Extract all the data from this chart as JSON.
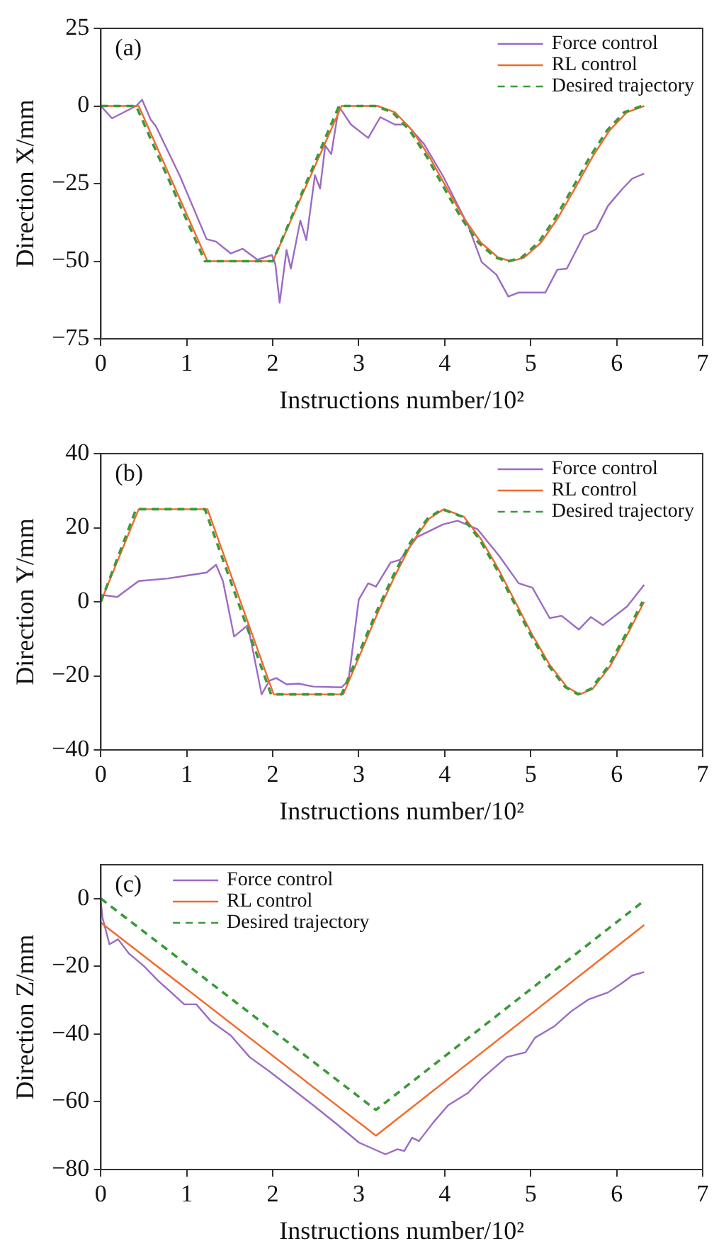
{
  "chart_data": [
    {
      "type": "line",
      "xlabel": "Instructions number/10²",
      "ylabel": "Direction X/mm",
      "annotations": [
        "(a)"
      ],
      "xlim": [
        0,
        7
      ],
      "xticks": [
        0,
        1,
        2,
        3,
        4,
        5,
        6,
        7
      ],
      "ylim": [
        -75,
        25
      ],
      "yticks": [
        -75,
        -50,
        -25,
        0,
        25
      ],
      "legend": "top right",
      "grid": false,
      "marker": "none",
      "series": [
        {
          "name": "Force control",
          "color": "#9b6bc4",
          "line_style": "solid",
          "x": [
            0,
            0.13,
            0.27,
            0.41,
            0.48,
            0.58,
            0.64,
            0.92,
            1.23,
            1.34,
            1.51,
            1.65,
            1.82,
            1.99,
            2.03,
            2.08,
            2.16,
            2.21,
            2.32,
            2.39,
            2.49,
            2.55,
            2.61,
            2.68,
            2.77,
            2.91,
            3.11,
            3.25,
            3.42,
            3.56,
            3.76,
            3.98,
            4.27,
            4.43,
            4.6,
            4.74,
            4.86,
            5.17,
            5.31,
            5.42,
            5.62,
            5.76,
            5.9,
            6.07,
            6.18,
            6.32
          ],
          "values": [
            0,
            -4,
            -2,
            0,
            2,
            -4.4,
            -6.5,
            -22.6,
            -42.9,
            -43.7,
            -47.5,
            -46,
            -49.5,
            -48,
            -51,
            -63.4,
            -46.4,
            -52.4,
            -36.9,
            -43.2,
            -22.3,
            -26.6,
            -12.8,
            -15.5,
            -0.2,
            -6,
            -10.3,
            -3.6,
            -6,
            -6,
            -12.3,
            -22.6,
            -38.4,
            -50.3,
            -54.3,
            -61.4,
            -60.1,
            -60.1,
            -52.7,
            -52.4,
            -41.6,
            -39.7,
            -32.1,
            -26.6,
            -23.4,
            -21.8
          ]
        },
        {
          "name": "RL control",
          "color": "#f26a2a",
          "line_style": "solid",
          "x": [
            0,
            0.44,
            1.24,
            2.0,
            2.8,
            3.22,
            3.42,
            3.62,
            3.82,
            4.02,
            4.22,
            4.42,
            4.62,
            4.77,
            4.92,
            5.12,
            5.32,
            5.52,
            5.72,
            5.92,
            6.12,
            6.32
          ],
          "values": [
            0,
            0,
            -50,
            -50,
            0,
            0,
            -2,
            -7.8,
            -16.3,
            -26.3,
            -36,
            -44,
            -48.8,
            -50,
            -48.9,
            -44,
            -35.9,
            -26.3,
            -16.3,
            -7.8,
            -2,
            0
          ]
        },
        {
          "name": "Desired trajectory",
          "color": "#3a9a3a",
          "line_style": "dashed",
          "x": [
            0,
            0.41,
            1.21,
            2.0,
            2.77,
            3.19,
            3.39,
            3.59,
            3.79,
            3.99,
            4.19,
            4.39,
            4.59,
            4.74,
            4.89,
            5.09,
            5.29,
            5.49,
            5.69,
            5.89,
            6.09,
            6.29
          ],
          "values": [
            0,
            0,
            -50,
            -50,
            0,
            0,
            -2,
            -7.8,
            -16.3,
            -26.3,
            -36,
            -44,
            -48.8,
            -50,
            -48.9,
            -44,
            -35.9,
            -26.3,
            -16.3,
            -7.8,
            -2,
            0
          ]
        }
      ]
    },
    {
      "type": "line",
      "xlabel": "Instructions number/10²",
      "ylabel": "Direction Y/mm",
      "annotations": [
        "(b)"
      ],
      "xlim": [
        0,
        7
      ],
      "xticks": [
        0,
        1,
        2,
        3,
        4,
        5,
        6,
        7
      ],
      "ylim": [
        -40,
        40
      ],
      "yticks": [
        -40,
        -20,
        0,
        20,
        40
      ],
      "legend": "top right",
      "grid": false,
      "marker": "none",
      "series": [
        {
          "name": "Force control",
          "color": "#9b6bc4",
          "line_style": "solid",
          "x": [
            0,
            0.19,
            0.44,
            0.78,
            1.23,
            1.34,
            1.42,
            1.55,
            1.71,
            1.87,
            1.96,
            2.04,
            2.16,
            2.3,
            2.47,
            2.8,
            2.88,
            3.0,
            3.11,
            3.2,
            3.37,
            3.48,
            3.68,
            3.98,
            4.15,
            4.38,
            4.63,
            4.86,
            5.02,
            5.22,
            5.36,
            5.56,
            5.7,
            5.84,
            6.12,
            6.32
          ],
          "values": [
            1.9,
            1.3,
            5.6,
            6.3,
            7.9,
            10,
            5.6,
            -9.4,
            -6.3,
            -25,
            -21.3,
            -20.6,
            -22.3,
            -22.1,
            -22.9,
            -23.1,
            -21.3,
            0.6,
            5,
            4.1,
            10.6,
            11.3,
            17.5,
            20.9,
            21.9,
            19.6,
            12.5,
            5,
            3.8,
            -4.4,
            -3.8,
            -7.5,
            -4.1,
            -6.3,
            -1.3,
            4.6
          ]
        },
        {
          "name": "RL control",
          "color": "#f26a2a",
          "line_style": "solid",
          "x": [
            0,
            0.44,
            1.24,
            2.01,
            2.82,
            3.02,
            3.22,
            3.42,
            3.62,
            3.82,
            3.99,
            4.22,
            4.42,
            4.62,
            4.82,
            5.02,
            5.22,
            5.42,
            5.57,
            5.72,
            5.92,
            6.12,
            6.32
          ],
          "values": [
            0,
            25,
            25,
            -25,
            -25,
            -14,
            -3,
            7,
            16,
            22.5,
            25,
            23,
            17,
            9,
            0,
            -9,
            -17,
            -23,
            -25,
            -23.5,
            -17.5,
            -9,
            0
          ]
        },
        {
          "name": "Desired trajectory",
          "color": "#3a9a3a",
          "line_style": "dashed",
          "x": [
            0,
            0.41,
            1.21,
            1.98,
            2.8,
            3.0,
            3.2,
            3.4,
            3.6,
            3.8,
            3.97,
            4.2,
            4.4,
            4.6,
            4.8,
            5.0,
            5.2,
            5.4,
            5.55,
            5.7,
            5.9,
            6.1,
            6.3
          ],
          "values": [
            0,
            25,
            25,
            -25,
            -25,
            -14,
            -3,
            7,
            16,
            22.5,
            25,
            23,
            17,
            9,
            0,
            -9,
            -17,
            -23,
            -25,
            -23.5,
            -17.5,
            -9,
            0
          ]
        }
      ]
    },
    {
      "type": "line",
      "xlabel": "Instructions number/10²",
      "ylabel": "Direction Z/mm",
      "annotations": [
        "(c)"
      ],
      "xlim": [
        0,
        7
      ],
      "xticks": [
        0,
        1,
        2,
        3,
        4,
        5,
        6,
        7
      ],
      "ylim": [
        -80,
        10
      ],
      "yticks": [
        -80,
        -60,
        -40,
        -20,
        0
      ],
      "legend": "top left",
      "grid": false,
      "marker": "none",
      "series": [
        {
          "name": "Force control",
          "color": "#9b6bc4",
          "line_style": "solid",
          "x": [
            0,
            0.02,
            0.1,
            0.2,
            0.33,
            0.5,
            0.66,
            0.97,
            1.11,
            1.28,
            1.51,
            1.73,
            1.96,
            2.18,
            2.47,
            2.75,
            3.0,
            3.31,
            3.45,
            3.53,
            3.62,
            3.7,
            3.87,
            4.04,
            4.27,
            4.43,
            4.72,
            4.94,
            5.05,
            5.28,
            5.47,
            5.67,
            5.9,
            6.07,
            6.18,
            6.32
          ],
          "values": [
            -1,
            -5.7,
            -13.5,
            -12,
            -16.3,
            -19.9,
            -24.1,
            -31.2,
            -31.2,
            -36.2,
            -40.4,
            -46.8,
            -51,
            -55.3,
            -61,
            -66.7,
            -72,
            -75.5,
            -74,
            -74.5,
            -70.6,
            -71.6,
            -66,
            -61,
            -57.4,
            -53.2,
            -46.8,
            -45.4,
            -41.1,
            -37.6,
            -33.3,
            -29.8,
            -27.7,
            -24.8,
            -22.7,
            -21.7
          ]
        },
        {
          "name": "RL control",
          "color": "#f26a2a",
          "line_style": "solid",
          "x": [
            0,
            3.2,
            6.32
          ],
          "values": [
            -7.1,
            -70,
            -7.8
          ]
        },
        {
          "name": "Desired trajectory",
          "color": "#3a9a3a",
          "line_style": "dashed",
          "x": [
            0,
            3.2,
            6.3
          ],
          "values": [
            0,
            -62.4,
            -1
          ]
        }
      ]
    }
  ]
}
